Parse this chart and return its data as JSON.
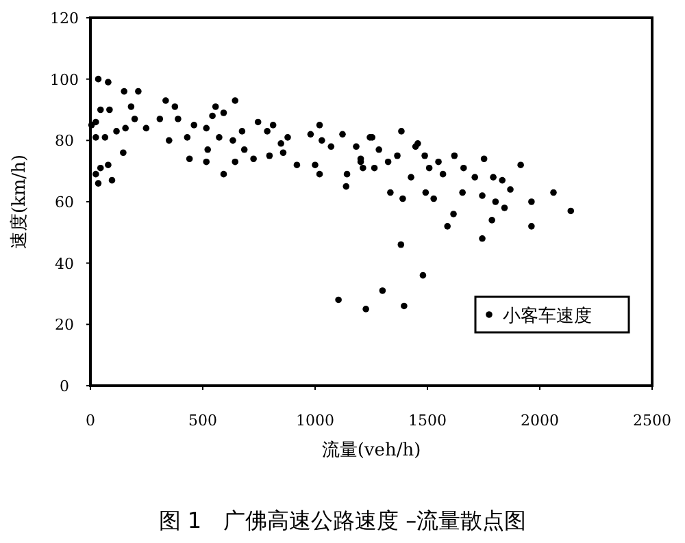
{
  "chart_data": {
    "type": "scatter",
    "title": "图 1　广佛高速公路速度 –流量散点图",
    "xlabel": "流量(veh/h)",
    "ylabel": "速度(km/h)",
    "xlim": [
      0,
      2500
    ],
    "ylim": [
      0,
      120
    ],
    "xticks": [
      0,
      500,
      1000,
      1500,
      2000,
      2500
    ],
    "yticks": [
      0,
      20,
      40,
      60,
      80,
      100,
      120
    ],
    "grid": false,
    "legend": "bottom right",
    "marker": "circle",
    "series": [
      {
        "name": "小客车速度",
        "color": "#000000",
        "x": [
          1104,
          1226,
          1300,
          1396,
          1480,
          1382,
          1589,
          1616,
          1744,
          1787,
          1963,
          2138,
          2061,
          1963,
          1915,
          1869,
          1384,
          1335,
          1390,
          1492,
          1528,
          1656,
          1744,
          1803,
          1843,
          5,
          35,
          79,
          150,
          213,
          181,
          85,
          45,
          24,
          24,
          65,
          116,
          156,
          197,
          248,
          309,
          335,
          376,
          350,
          390,
          441,
          461,
          431,
          516,
          516,
          522,
          557,
          543,
          593,
          644,
          593,
          573,
          634,
          644,
          685,
          675,
          726,
          746,
          787,
          813,
          797,
          848,
          878,
          858,
          919,
          980,
          1020,
          1030,
          1000,
          1020,
          1071,
          1122,
          1142,
          1138,
          1183,
          1203,
          1244,
          1264,
          24,
          35,
          96,
          79,
          45,
          146,
          1203,
          1254,
          1284,
          1325,
          1366,
          1447,
          1457,
          1488,
          1508,
          1549,
          1620,
          1661,
          1711,
          1752,
          1793,
          1833,
          1569,
          1427,
          1213
        ],
        "values": [
          28,
          25,
          31,
          26,
          36,
          46,
          52,
          56,
          48,
          54,
          52,
          57,
          63,
          60,
          72,
          64,
          83,
          63,
          61,
          63,
          61,
          63,
          62,
          60,
          58,
          85,
          100,
          99,
          96,
          96,
          91,
          90,
          90,
          86,
          81,
          81,
          83,
          84,
          87,
          84,
          87,
          93,
          91,
          80,
          87,
          74,
          85,
          81,
          84,
          73,
          77,
          91,
          88,
          89,
          93,
          69,
          81,
          80,
          73,
          77,
          83,
          74,
          86,
          83,
          85,
          75,
          79,
          81,
          76,
          72,
          82,
          85,
          80,
          72,
          69,
          78,
          82,
          69,
          65,
          78,
          73,
          81,
          71,
          69,
          66,
          67,
          72,
          71,
          76,
          74,
          81,
          77,
          73,
          75,
          78,
          79,
          75,
          71,
          73,
          75,
          71,
          68,
          74,
          68,
          67,
          69,
          68,
          71
        ]
      }
    ]
  }
}
